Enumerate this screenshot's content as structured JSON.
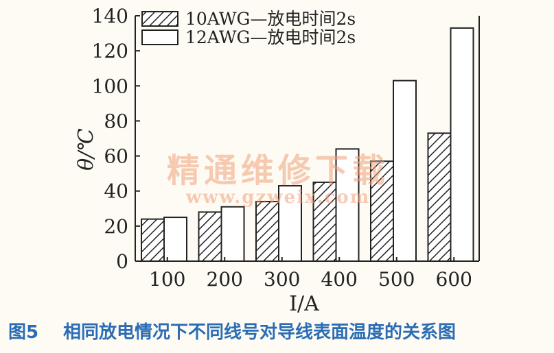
{
  "chart_data": {
    "type": "bar",
    "categories": [
      "100",
      "200",
      "300",
      "400",
      "500",
      "600"
    ],
    "series": [
      {
        "name": "10AWG—放电时间2s",
        "values": [
          24,
          28,
          34,
          45,
          57,
          73
        ]
      },
      {
        "name": "12AWG—放电时间2s",
        "values": [
          25,
          31,
          43,
          64,
          103,
          133
        ]
      }
    ],
    "xlabel": "I/A",
    "ylabel": "θ/℃",
    "ylim": [
      0,
      140
    ],
    "yticks": [
      0,
      20,
      40,
      60,
      80,
      100,
      120,
      140
    ],
    "legend_position": "top-left",
    "grid": false
  },
  "caption": {
    "label": "图5",
    "text": "相同放电情况下不同线号对导线表面温度的关系图"
  },
  "watermark": {
    "text": "精通维修下载",
    "url": "www.gzweix.com"
  },
  "colors": {
    "caption": "#2a6db5",
    "watermark": "#f0a07a",
    "axis": "#222222"
  }
}
